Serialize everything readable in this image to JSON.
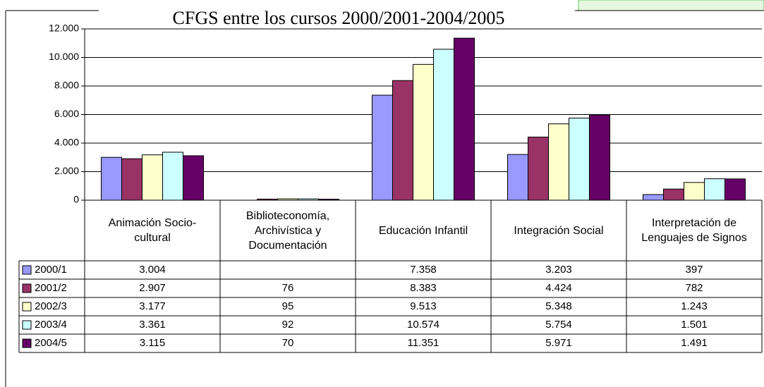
{
  "chart_data": {
    "type": "bar",
    "title": "CFGS entre los cursos 2000/2001-2004/2005",
    "categories": [
      "Animación Socio-cultural",
      "Biblioteconomía, Archivística y Documentación",
      "Educación Infantil",
      "Integración Social",
      "Interpretación de Lenguajes de Signos"
    ],
    "series": [
      {
        "name": "2000/1",
        "color": "#9999ff",
        "values": [
          3004,
          null,
          7358,
          3203,
          397
        ],
        "value_labels": [
          "3.004",
          null,
          "7.358",
          "3.203",
          "397"
        ]
      },
      {
        "name": "2001/2",
        "color": "#993366",
        "values": [
          2907,
          76,
          8383,
          4424,
          782
        ],
        "value_labels": [
          "2.907",
          "76",
          "8.383",
          "4.424",
          "782"
        ]
      },
      {
        "name": "2002/3",
        "color": "#ffffcc",
        "values": [
          3177,
          95,
          9513,
          5348,
          1243
        ],
        "value_labels": [
          "3.177",
          "95",
          "9.513",
          "5.348",
          "1.243"
        ]
      },
      {
        "name": "2003/4",
        "color": "#ccffff",
        "values": [
          3361,
          92,
          10574,
          5754,
          1501
        ],
        "value_labels": [
          "3.361",
          "92",
          "10.574",
          "5.754",
          "1.501"
        ]
      },
      {
        "name": "2004/5",
        "color": "#660066",
        "values": [
          3115,
          70,
          11351,
          5971,
          1491
        ],
        "value_labels": [
          "3.115",
          "70",
          "11.351",
          "5.971",
          "1.491"
        ]
      }
    ],
    "ylim": [
      0,
      12000
    ],
    "yticks": [
      0,
      {
        "value": 2000,
        "label": "2.000"
      },
      {
        "value": 4000,
        "label": "4.000"
      },
      {
        "value": 6000,
        "label": "6.000"
      },
      {
        "value": 8000,
        "label": "8.000"
      },
      {
        "value": 10000,
        "label": "10.000"
      },
      {
        "value": 12000,
        "label": "12.000"
      }
    ],
    "grid": true
  }
}
